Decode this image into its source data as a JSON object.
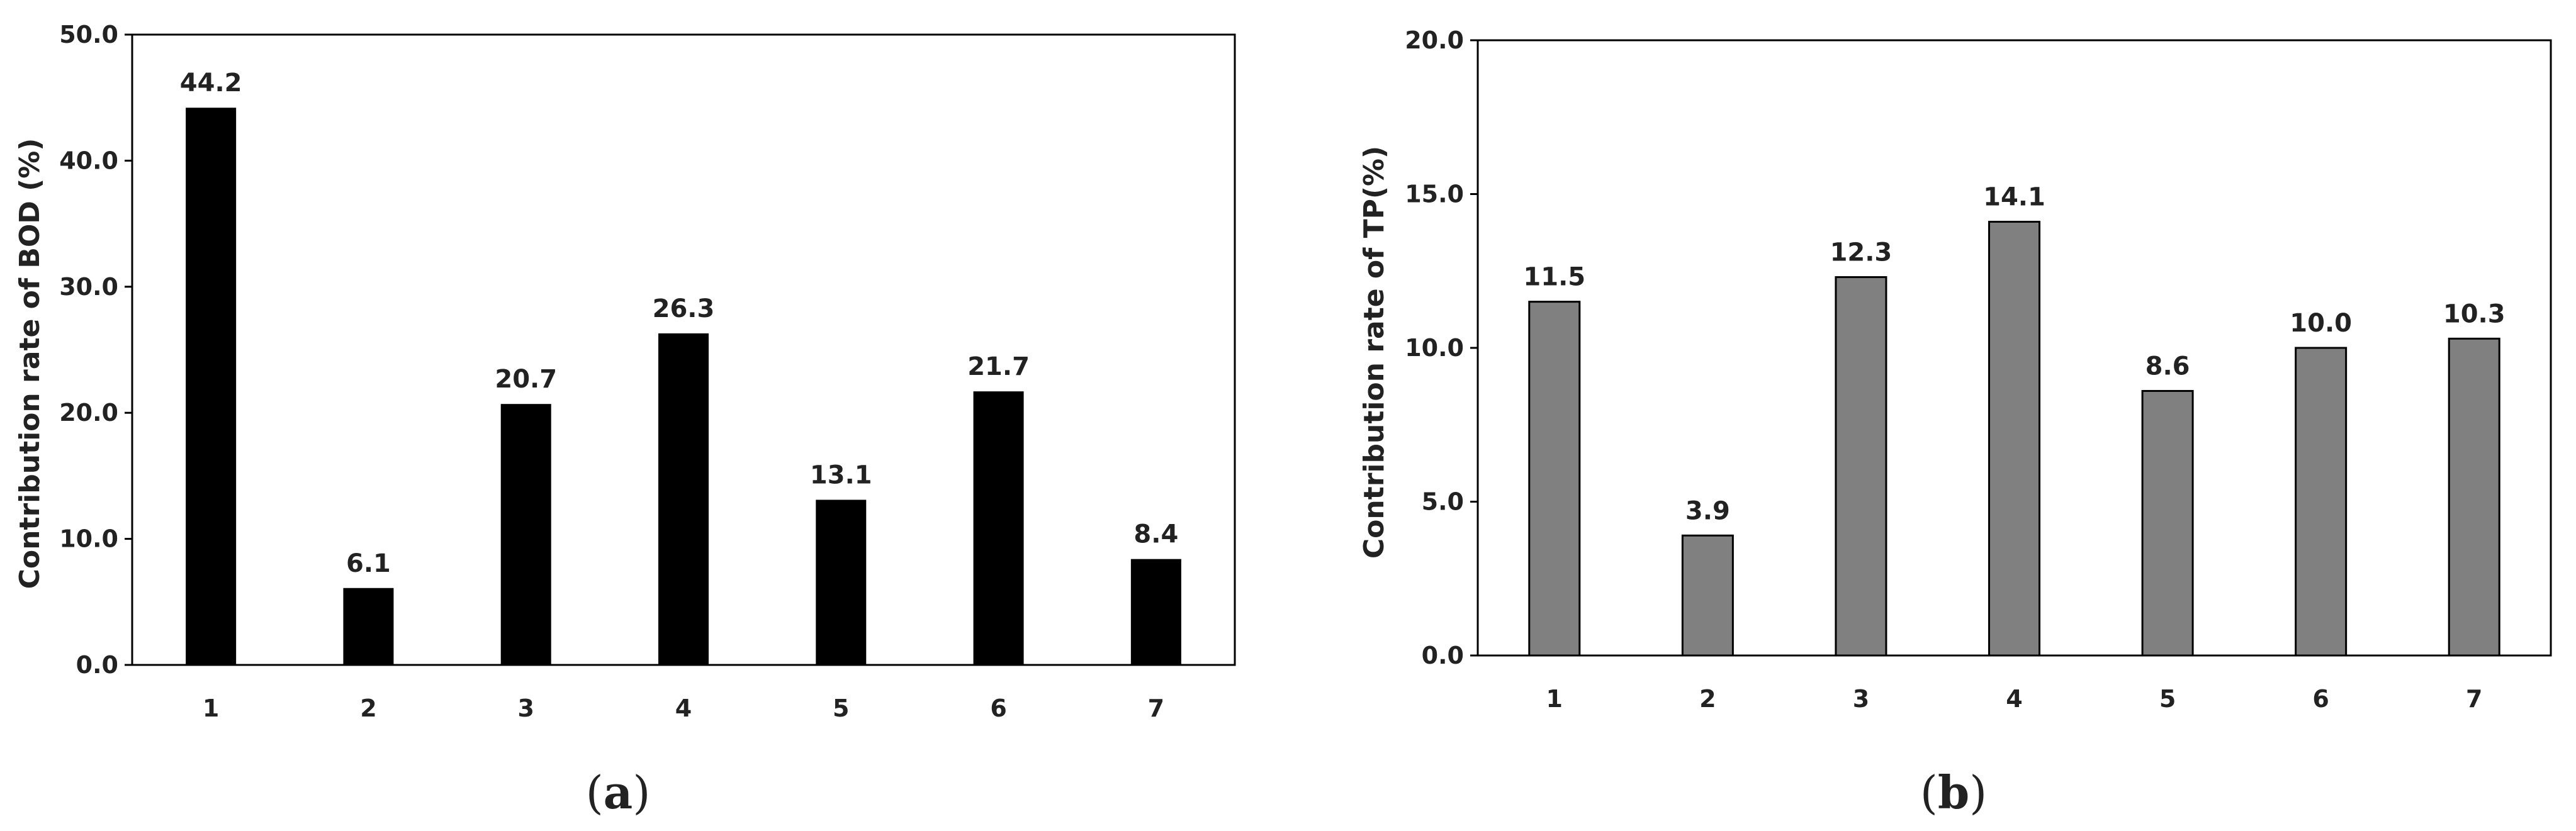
{
  "chart_data": [
    {
      "type": "bar",
      "panel_label": "a",
      "categories": [
        "1",
        "2",
        "3",
        "4",
        "5",
        "6",
        "7"
      ],
      "values": [
        44.2,
        6.1,
        20.7,
        26.3,
        13.1,
        21.7,
        8.4
      ],
      "data_labels": [
        "44.2",
        "6.1",
        "20.7",
        "26.3",
        "13.1",
        "21.7",
        "8.4"
      ],
      "ylabel": "Contribution rate of BOD (%)",
      "xlabel": "",
      "ylim": [
        0,
        50
      ],
      "yticks": [
        "0.0",
        "10.0",
        "20.0",
        "30.0",
        "40.0",
        "50.0"
      ],
      "bar_color": "#000000",
      "grid": false
    },
    {
      "type": "bar",
      "panel_label": "b",
      "categories": [
        "1",
        "2",
        "3",
        "4",
        "5",
        "6",
        "7"
      ],
      "values": [
        11.5,
        3.9,
        12.3,
        14.1,
        8.6,
        10.0,
        10.3
      ],
      "data_labels": [
        "11.5",
        "3.9",
        "12.3",
        "14.1",
        "8.6",
        "10.0",
        "10.3"
      ],
      "ylabel": "Contribution rate  of  TP(%)",
      "xlabel": "",
      "ylim": [
        0,
        20
      ],
      "yticks": [
        "0.0",
        "5.0",
        "10.0",
        "15.0",
        "20.0"
      ],
      "bar_color": "#808080",
      "grid": false
    }
  ]
}
